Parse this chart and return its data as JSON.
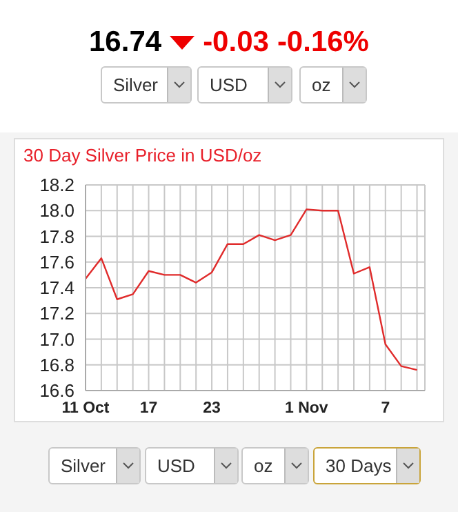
{
  "chart_data": {
    "type": "line",
    "title": "30 Day Silver Price in USD/oz",
    "categories": [
      "11 Oct",
      null,
      null,
      null,
      "17",
      null,
      null,
      null,
      "23",
      null,
      null,
      null,
      null,
      null,
      "1 Nov",
      null,
      null,
      null,
      null,
      "7",
      null,
      null
    ],
    "series": [
      {
        "color": "#e02b2b",
        "values": [
          17.47,
          17.63,
          17.31,
          17.35,
          17.53,
          17.5,
          17.5,
          17.44,
          17.52,
          17.74,
          17.74,
          17.81,
          17.77,
          17.81,
          18.01,
          18.0,
          18.0,
          17.51,
          17.56,
          16.96,
          16.79,
          16.76
        ]
      }
    ],
    "ylim": [
      16.6,
      18.2
    ],
    "yticks": [
      16.6,
      16.8,
      {
        "value": 17,
        "label": "17.0"
      },
      17.2,
      17.4,
      17.6,
      17.8,
      {
        "value": 18,
        "label": "18.0"
      },
      18.2
    ],
    "grid": true,
    "marker": "none",
    "line_style": "solid",
    "annotations": [
      "16.74",
      "-0.03",
      "-0.16%",
      "Silver",
      "USD",
      "oz",
      "Silver",
      "USD",
      "oz",
      "30 Days"
    ]
  }
}
